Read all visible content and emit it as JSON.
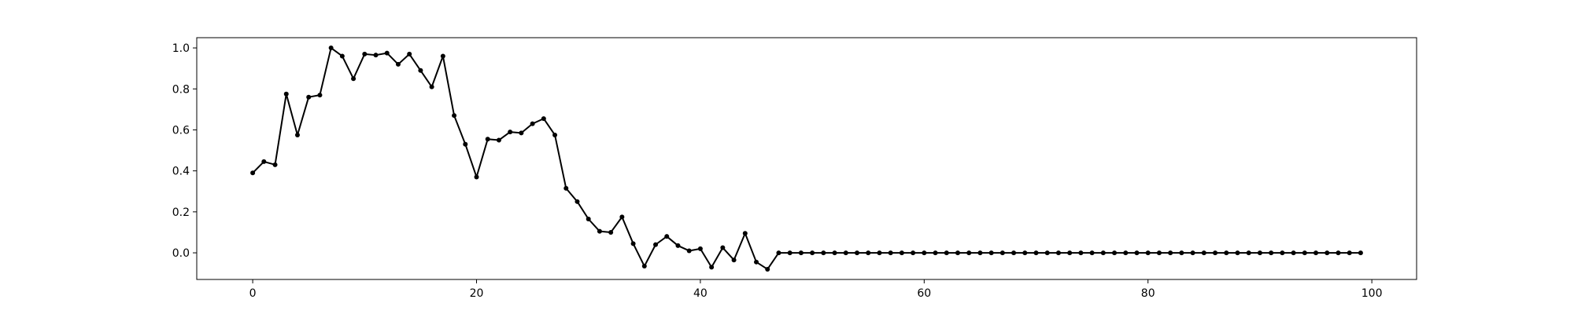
{
  "chart_data": {
    "type": "line",
    "title": "",
    "xlabel": "",
    "ylabel": "",
    "xlim": [
      -5,
      104
    ],
    "ylim": [
      -0.13,
      1.05
    ],
    "grid": false,
    "x_ticks": [
      0,
      20,
      40,
      60,
      80,
      100
    ],
    "x_tick_labels": [
      "0",
      "20",
      "40",
      "60",
      "80",
      "100"
    ],
    "y_ticks": [
      0.0,
      0.2,
      0.4,
      0.6,
      0.8,
      1.0
    ],
    "y_tick_labels": [
      "0.0",
      "0.2",
      "0.4",
      "0.6",
      "0.8",
      "1.0"
    ],
    "series": [
      {
        "color": "#000000",
        "marker": "circle",
        "x": [
          0,
          1,
          2,
          3,
          4,
          5,
          6,
          7,
          8,
          9,
          10,
          11,
          12,
          13,
          14,
          15,
          16,
          17,
          18,
          19,
          20,
          21,
          22,
          23,
          24,
          25,
          26,
          27,
          28,
          29,
          30,
          31,
          32,
          33,
          34,
          35,
          36,
          37,
          38,
          39,
          40,
          41,
          42,
          43,
          44,
          45,
          46,
          47,
          48,
          49,
          50,
          51,
          52,
          53,
          54,
          55,
          56,
          57,
          58,
          59,
          60,
          61,
          62,
          63,
          64,
          65,
          66,
          67,
          68,
          69,
          70,
          71,
          72,
          73,
          74,
          75,
          76,
          77,
          78,
          79,
          80,
          81,
          82,
          83,
          84,
          85,
          86,
          87,
          88,
          89,
          90,
          91,
          92,
          93,
          94,
          95,
          96,
          97,
          98,
          99
        ],
        "y": [
          0.39,
          0.445,
          0.43,
          0.775,
          0.575,
          0.76,
          0.77,
          1.0,
          0.96,
          0.85,
          0.97,
          0.965,
          0.975,
          0.92,
          0.97,
          0.89,
          0.81,
          0.96,
          0.67,
          0.53,
          0.37,
          0.555,
          0.55,
          0.59,
          0.585,
          0.63,
          0.655,
          0.575,
          0.315,
          0.25,
          0.165,
          0.105,
          0.1,
          0.175,
          0.045,
          -0.065,
          0.04,
          0.08,
          0.035,
          0.01,
          0.02,
          -0.07,
          0.025,
          -0.035,
          0.095,
          -0.045,
          -0.08,
          0,
          0,
          0,
          0,
          0,
          0,
          0,
          0,
          0,
          0,
          0,
          0,
          0,
          0,
          0,
          0,
          0,
          0,
          0,
          0,
          0,
          0,
          0,
          0,
          0,
          0,
          0,
          0,
          0,
          0,
          0,
          0,
          0,
          0,
          0,
          0,
          0,
          0,
          0,
          0,
          0,
          0,
          0,
          0,
          0,
          0,
          0,
          0,
          0,
          0,
          0,
          0,
          0
        ]
      }
    ]
  }
}
